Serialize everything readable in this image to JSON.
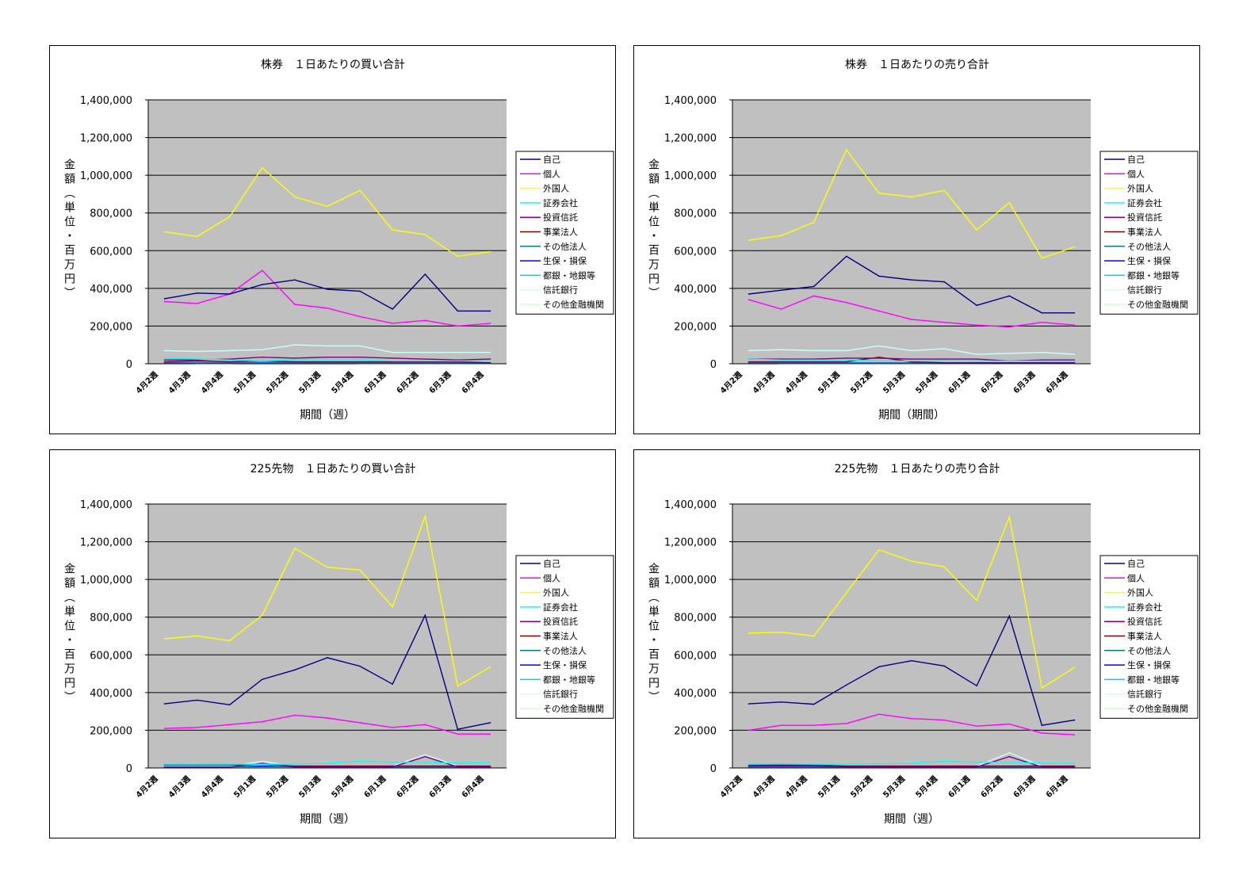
{
  "chart_data": [
    {
      "type": "line",
      "title": "株券　１日あたりの買い合計",
      "xlabel": "期間（週）",
      "ylabel": "金額（単位・百万円）",
      "categories": [
        "4月2週",
        "4月3週",
        "4月4週",
        "5月1週",
        "5月2週",
        "5月3週",
        "5月4週",
        "6月1週",
        "6月2週",
        "6月3週",
        "6月4週"
      ],
      "ylim": [
        0,
        1400000
      ],
      "yticks": [
        "0",
        "200,000",
        "400,000",
        "600,000",
        "800,000",
        "1,000,000",
        "1,200,000",
        "1,400,000"
      ],
      "grid": true,
      "legend": "right",
      "plot_background": "#c0c0c0",
      "series": [
        {
          "name": "自己",
          "color": "#000080",
          "values": [
            345000,
            375000,
            370000,
            420000,
            445000,
            395000,
            385000,
            290000,
            475000,
            280000,
            280000
          ]
        },
        {
          "name": "個人",
          "color": "#ff00ff",
          "values": [
            330000,
            320000,
            370000,
            495000,
            315000,
            295000,
            250000,
            215000,
            230000,
            200000,
            215000
          ]
        },
        {
          "name": "外国人",
          "color": "#ffff00",
          "values": [
            700000,
            675000,
            780000,
            1040000,
            885000,
            835000,
            920000,
            710000,
            685000,
            570000,
            595000
          ]
        },
        {
          "name": "証券会社",
          "color": "#00ffff",
          "values": [
            30000,
            25000,
            20000,
            15000,
            20000,
            20000,
            20000,
            15000,
            15000,
            15000,
            15000
          ]
        },
        {
          "name": "投資信託",
          "color": "#800080",
          "values": [
            20000,
            20000,
            25000,
            35000,
            30000,
            35000,
            35000,
            30000,
            25000,
            20000,
            25000
          ]
        },
        {
          "name": "事業法人",
          "color": "#800000",
          "values": [
            10000,
            15000,
            10000,
            15000,
            10000,
            10000,
            10000,
            10000,
            10000,
            10000,
            5000
          ]
        },
        {
          "name": "その他法人",
          "color": "#008080",
          "values": [
            5000,
            5000,
            5000,
            5000,
            5000,
            5000,
            5000,
            5000,
            5000,
            5000,
            5000
          ]
        },
        {
          "name": "生保・損保",
          "color": "#0000ff",
          "values": [
            3000,
            3000,
            3000,
            3000,
            3000,
            3000,
            3000,
            3000,
            3000,
            3000,
            3000
          ]
        },
        {
          "name": "都銀・地銀等",
          "color": "#00ccff",
          "values": [
            8000,
            2000,
            2000,
            8000,
            8000,
            8000,
            2000,
            2000,
            2000,
            2000,
            2000
          ]
        },
        {
          "name": "信託銀行",
          "color": "#ccffff",
          "values": [
            70000,
            65000,
            70000,
            75000,
            100000,
            95000,
            95000,
            60000,
            60000,
            60000,
            60000
          ]
        },
        {
          "name": "その他金融機関",
          "color": "#ccffcc",
          "values": [
            4000,
            4000,
            4000,
            4000,
            4000,
            4000,
            4000,
            4000,
            4000,
            4000,
            4000
          ]
        }
      ]
    },
    {
      "type": "line",
      "title": "株券　１日あたりの売り合計",
      "xlabel": "期間（期間）",
      "ylabel": "金額（単位・百万円）",
      "categories": [
        "4月2週",
        "4月3週",
        "4月4週",
        "5月1週",
        "5月2週",
        "5月3週",
        "5月4週",
        "6月1週",
        "6月2週",
        "6月3週",
        "6月4週"
      ],
      "ylim": [
        0,
        1400000
      ],
      "yticks": [
        "0",
        "200,000",
        "400,000",
        "600,000",
        "800,000",
        "1,000,000",
        "1,200,000",
        "1,400,000"
      ],
      "grid": true,
      "legend": "right",
      "plot_background": "#c0c0c0",
      "series": [
        {
          "name": "自己",
          "color": "#000080",
          "values": [
            370000,
            390000,
            410000,
            570000,
            465000,
            445000,
            435000,
            310000,
            360000,
            270000,
            270000
          ]
        },
        {
          "name": "個人",
          "color": "#ff00ff",
          "values": [
            340000,
            290000,
            360000,
            325000,
            280000,
            235000,
            220000,
            205000,
            195000,
            220000,
            205000
          ]
        },
        {
          "name": "外国人",
          "color": "#ffff00",
          "values": [
            655000,
            680000,
            750000,
            1135000,
            905000,
            885000,
            920000,
            710000,
            855000,
            560000,
            620000
          ]
        },
        {
          "name": "証券会社",
          "color": "#00ffff",
          "values": [
            25000,
            20000,
            20000,
            20000,
            15000,
            15000,
            15000,
            15000,
            15000,
            15000,
            15000
          ]
        },
        {
          "name": "投資信託",
          "color": "#800080",
          "values": [
            25000,
            25000,
            25000,
            30000,
            30000,
            25000,
            25000,
            25000,
            15000,
            20000,
            20000
          ]
        },
        {
          "name": "事業法人",
          "color": "#800000",
          "values": [
            10000,
            10000,
            10000,
            10000,
            35000,
            10000,
            5000,
            5000,
            5000,
            5000,
            5000
          ]
        },
        {
          "name": "その他法人",
          "color": "#008080",
          "values": [
            5000,
            5000,
            5000,
            5000,
            5000,
            5000,
            5000,
            5000,
            5000,
            5000,
            5000
          ]
        },
        {
          "name": "生保・損保",
          "color": "#0000ff",
          "values": [
            3000,
            3000,
            3000,
            3000,
            3000,
            3000,
            3000,
            3000,
            3000,
            3000,
            3000
          ]
        },
        {
          "name": "都銀・地銀等",
          "color": "#00ccff",
          "values": [
            8000,
            2000,
            2000,
            2000,
            2000,
            2000,
            2000,
            2000,
            2000,
            2000,
            2000
          ]
        },
        {
          "name": "信託銀行",
          "color": "#ccffff",
          "values": [
            70000,
            75000,
            70000,
            70000,
            95000,
            70000,
            80000,
            50000,
            55000,
            60000,
            50000
          ]
        },
        {
          "name": "その他金融機関",
          "color": "#ccffcc",
          "values": [
            4000,
            4000,
            4000,
            4000,
            4000,
            4000,
            4000,
            4000,
            4000,
            4000,
            4000
          ]
        }
      ]
    },
    {
      "type": "line",
      "title": "225先物　１日あたりの買い合計",
      "xlabel": "期間（週）",
      "ylabel": "金額（単位・百万円）",
      "categories": [
        "4月2週",
        "4月3週",
        "4月4週",
        "5月1週",
        "5月2週",
        "5月3週",
        "5月4週",
        "6月1週",
        "6月2週",
        "6月3週",
        "6月4週"
      ],
      "ylim": [
        0,
        1400000
      ],
      "yticks": [
        "0",
        "200,000",
        "400,000",
        "600,000",
        "800,000",
        "1,000,000",
        "1,200,000",
        "1,400,000"
      ],
      "grid": true,
      "legend": "right",
      "plot_background": "#c0c0c0",
      "series": [
        {
          "name": "自己",
          "color": "#000080",
          "values": [
            340000,
            360000,
            335000,
            470000,
            520000,
            585000,
            540000,
            445000,
            810000,
            205000,
            240000
          ]
        },
        {
          "name": "個人",
          "color": "#ff00ff",
          "values": [
            210000,
            215000,
            230000,
            245000,
            280000,
            265000,
            240000,
            215000,
            230000,
            180000,
            180000
          ]
        },
        {
          "name": "外国人",
          "color": "#ffff00",
          "values": [
            685000,
            700000,
            675000,
            810000,
            1165000,
            1065000,
            1050000,
            855000,
            1335000,
            435000,
            535000
          ]
        },
        {
          "name": "証券会社",
          "color": "#00ffff",
          "values": [
            20000,
            20000,
            20000,
            20000,
            20000,
            25000,
            35000,
            30000,
            30000,
            25000,
            30000
          ]
        },
        {
          "name": "投資信託",
          "color": "#800080",
          "values": [
            5000,
            5000,
            5000,
            25000,
            5000,
            5000,
            5000,
            5000,
            60000,
            5000,
            5000
          ]
        },
        {
          "name": "事業法人",
          "color": "#800000",
          "values": [
            15000,
            15000,
            15000,
            20000,
            10000,
            10000,
            10000,
            10000,
            10000,
            10000,
            10000
          ]
        },
        {
          "name": "その他法人",
          "color": "#008080",
          "values": [
            5000,
            5000,
            5000,
            5000,
            5000,
            5000,
            5000,
            5000,
            5000,
            5000,
            5000
          ]
        },
        {
          "name": "生保・損保",
          "color": "#0000ff",
          "values": [
            3000,
            3000,
            3000,
            10000,
            3000,
            3000,
            3000,
            3000,
            3000,
            3000,
            3000
          ]
        },
        {
          "name": "都銀・地銀等",
          "color": "#00ccff",
          "values": [
            5000,
            5000,
            5000,
            10000,
            5000,
            5000,
            5000,
            5000,
            5000,
            5000,
            5000
          ]
        },
        {
          "name": "信託銀行",
          "color": "#ccffff",
          "values": [
            10000,
            10000,
            10000,
            35000,
            10000,
            10000,
            10000,
            10000,
            70000,
            10000,
            10000
          ]
        },
        {
          "name": "その他金融機関",
          "color": "#ccffcc",
          "values": [
            4000,
            4000,
            4000,
            4000,
            4000,
            4000,
            4000,
            4000,
            4000,
            4000,
            4000
          ]
        }
      ]
    },
    {
      "type": "line",
      "title": "225先物　１日あたりの売り合計",
      "xlabel": "期間（週）",
      "ylabel": "金額（単位・百万円）",
      "categories": [
        "4月2週",
        "4月3週",
        "4月4週",
        "5月1週",
        "5月2週",
        "5月3週",
        "5月4週",
        "6月1週",
        "6月2週",
        "6月3週",
        "6月4週"
      ],
      "ylim": [
        0,
        1400000
      ],
      "yticks": [
        "0",
        "200,000",
        "400,000",
        "600,000",
        "800,000",
        "1,000,000",
        "1,200,000",
        "1,400,000"
      ],
      "grid": true,
      "legend": "right",
      "plot_background": "#c0c0c0",
      "series": [
        {
          "name": "自己",
          "color": "#000080",
          "values": [
            340000,
            350000,
            338000,
            440000,
            537000,
            569000,
            541000,
            436000,
            806000,
            226000,
            254000
          ]
        },
        {
          "name": "個人",
          "color": "#ff00ff",
          "values": [
            200000,
            226000,
            226000,
            236000,
            285000,
            262000,
            254000,
            222000,
            233000,
            185000,
            176000
          ]
        },
        {
          "name": "外国人",
          "color": "#ffff00",
          "values": [
            715000,
            720000,
            700000,
            930000,
            1157000,
            1097000,
            1067000,
            888000,
            1331000,
            424000,
            533000
          ]
        },
        {
          "name": "証券会社",
          "color": "#00ffff",
          "values": [
            20000,
            22000,
            20000,
            20000,
            22000,
            25000,
            35000,
            30000,
            30000,
            25000,
            25000
          ]
        },
        {
          "name": "投資信託",
          "color": "#800080",
          "values": [
            10000,
            10000,
            10000,
            5000,
            5000,
            5000,
            5000,
            5000,
            60000,
            5000,
            5000
          ]
        },
        {
          "name": "事業法人",
          "color": "#800000",
          "values": [
            15000,
            15000,
            15000,
            10000,
            10000,
            10000,
            10000,
            10000,
            10000,
            10000,
            10000
          ]
        },
        {
          "name": "その他法人",
          "color": "#008080",
          "values": [
            5000,
            5000,
            5000,
            5000,
            5000,
            5000,
            5000,
            5000,
            5000,
            5000,
            5000
          ]
        },
        {
          "name": "生保・損保",
          "color": "#0000ff",
          "values": [
            3000,
            3000,
            3000,
            3000,
            3000,
            3000,
            3000,
            3000,
            3000,
            3000,
            3000
          ]
        },
        {
          "name": "都銀・地銀等",
          "color": "#00ccff",
          "values": [
            5000,
            5000,
            5000,
            5000,
            5000,
            5000,
            5000,
            5000,
            5000,
            5000,
            5000
          ]
        },
        {
          "name": "信託銀行",
          "color": "#ccffff",
          "values": [
            10000,
            10000,
            10000,
            10000,
            10000,
            10000,
            10000,
            10000,
            80000,
            10000,
            10000
          ]
        },
        {
          "name": "その他金融機関",
          "color": "#ccffcc",
          "values": [
            4000,
            4000,
            4000,
            4000,
            4000,
            4000,
            4000,
            4000,
            4000,
            4000,
            4000
          ]
        }
      ]
    }
  ]
}
